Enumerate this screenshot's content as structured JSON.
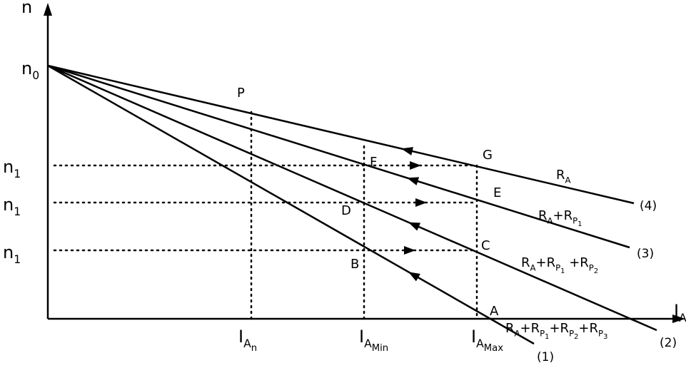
{
  "axes": {
    "y_label": "n",
    "x_label": {
      "base": "I",
      "sub": "A"
    }
  },
  "speeds": {
    "n0": {
      "base": "n",
      "sub": "0"
    },
    "n1": [
      {
        "base": "n",
        "sub": "1"
      },
      {
        "base": "n",
        "sub": "1"
      },
      {
        "base": "n",
        "sub": "1"
      }
    ]
  },
  "points": [
    "P",
    "G",
    "F",
    "E",
    "D",
    "C",
    "B",
    "A"
  ],
  "currents": [
    {
      "base": "I",
      "sub": "A",
      "subsub": "n"
    },
    {
      "base": "I",
      "sub": "A",
      "subsub": "Min"
    },
    {
      "base": "I",
      "sub": "A",
      "subsub": "Max"
    }
  ],
  "lines": [
    {
      "number": "(4)",
      "resistance": [
        {
          "base": "R",
          "sub": "A"
        }
      ]
    },
    {
      "number": "(3)",
      "resistance": [
        {
          "base": "R",
          "sub": "A"
        },
        {
          "base": "+R",
          "sub": "P",
          "subsub": "1"
        }
      ]
    },
    {
      "number": "(2)",
      "resistance": [
        {
          "base": "R",
          "sub": "A"
        },
        {
          "base": "+R",
          "sub": "P",
          "subsub": "1"
        },
        {
          "base": " +R",
          "sub": "P",
          "subsub": "2"
        }
      ]
    },
    {
      "number": "(1)",
      "resistance": [
        {
          "base": "R",
          "sub": "A"
        },
        {
          "base": "+R",
          "sub": "P",
          "subsub": "1"
        },
        {
          "base": "+R",
          "sub": "P",
          "subsub": "2"
        },
        {
          "base": "+R",
          "sub": "P",
          "subsub": "3"
        }
      ]
    }
  ]
}
